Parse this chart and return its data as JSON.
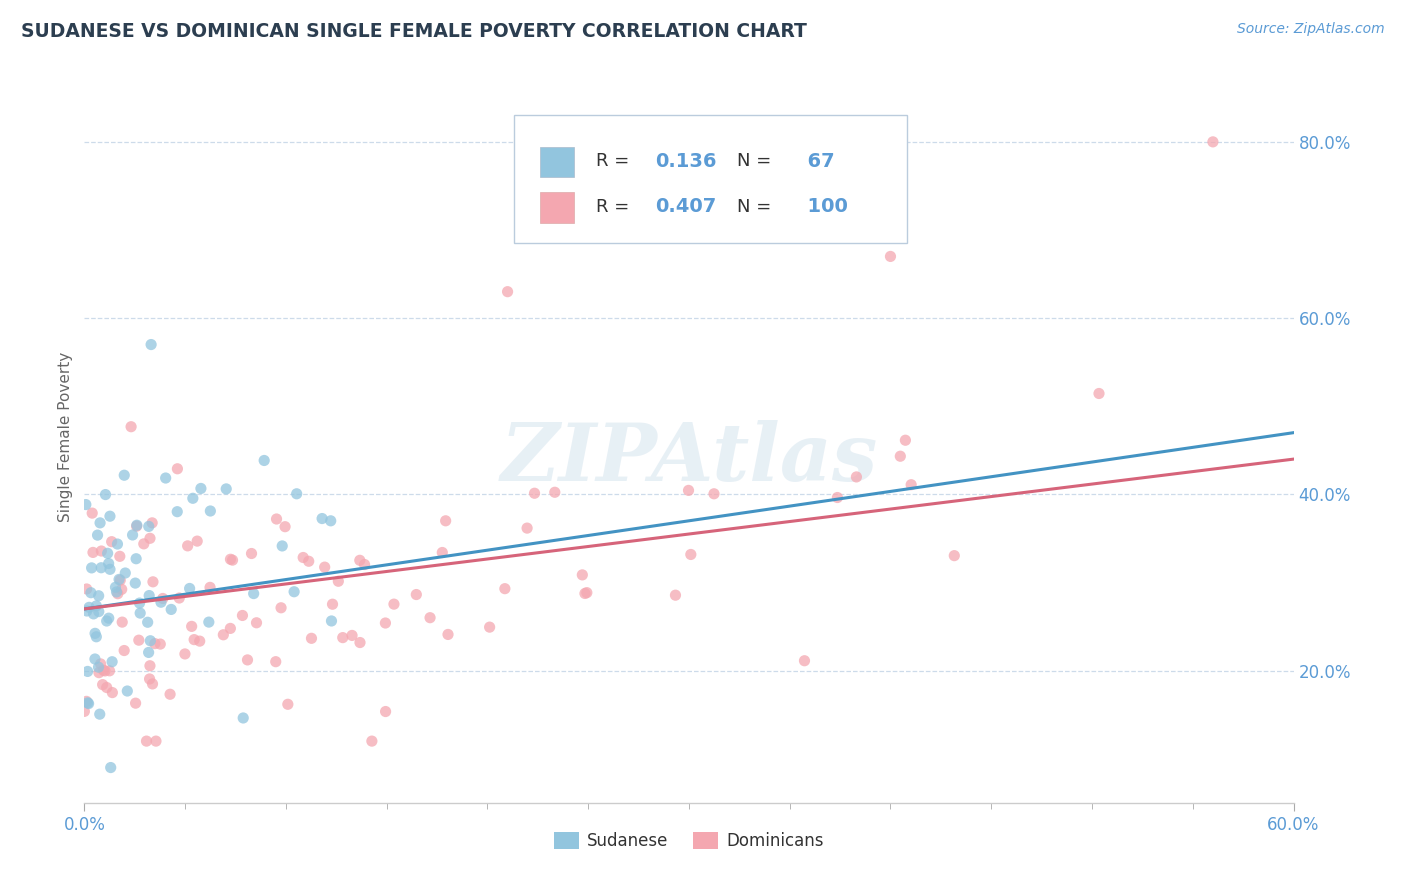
{
  "title": "SUDANESE VS DOMINICAN SINGLE FEMALE POVERTY CORRELATION CHART",
  "source_text": "Source: ZipAtlas.com",
  "ylabel": "Single Female Poverty",
  "x_min": 0.0,
  "x_max": 0.6,
  "y_min": 0.05,
  "y_max": 0.88,
  "y_ticks_right": [
    0.2,
    0.4,
    0.6,
    0.8
  ],
  "y_tick_labels_right": [
    "20.0%",
    "40.0%",
    "60.0%",
    "80.0%"
  ],
  "sudanese_color": "#92c5de",
  "dominican_color": "#f4a7b0",
  "sudanese_line_color": "#4393c3",
  "dominican_line_color": "#d6647a",
  "sudanese_R": 0.136,
  "sudanese_N": 67,
  "dominican_R": 0.407,
  "dominican_N": 100,
  "watermark": "ZIPAtlas",
  "title_color": "#2c3e50",
  "axis_label_color": "#5b9bd5",
  "background_color": "#ffffff",
  "grid_color": "#c8d8e8"
}
